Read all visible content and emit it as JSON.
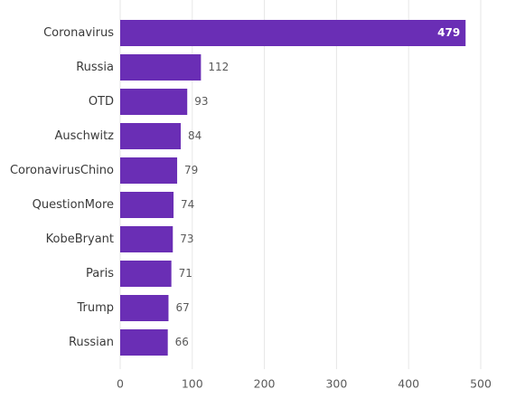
{
  "chart_data": {
    "type": "bar",
    "orientation": "horizontal",
    "categories": [
      "Coronavirus",
      "Russia",
      "OTD",
      "Auschwitz",
      "CoronavirusChino",
      "QuestionMore",
      "KobeBryant",
      "Paris",
      "Trump",
      "Russian"
    ],
    "values": [
      479,
      112,
      93,
      84,
      79,
      74,
      73,
      71,
      67,
      66
    ],
    "xlim": [
      0,
      500
    ],
    "xticks": [
      0,
      100,
      200,
      300,
      400,
      500
    ],
    "grid": true,
    "bar_color": "#6A2EB5",
    "title": "",
    "xlabel": "",
    "ylabel": ""
  }
}
